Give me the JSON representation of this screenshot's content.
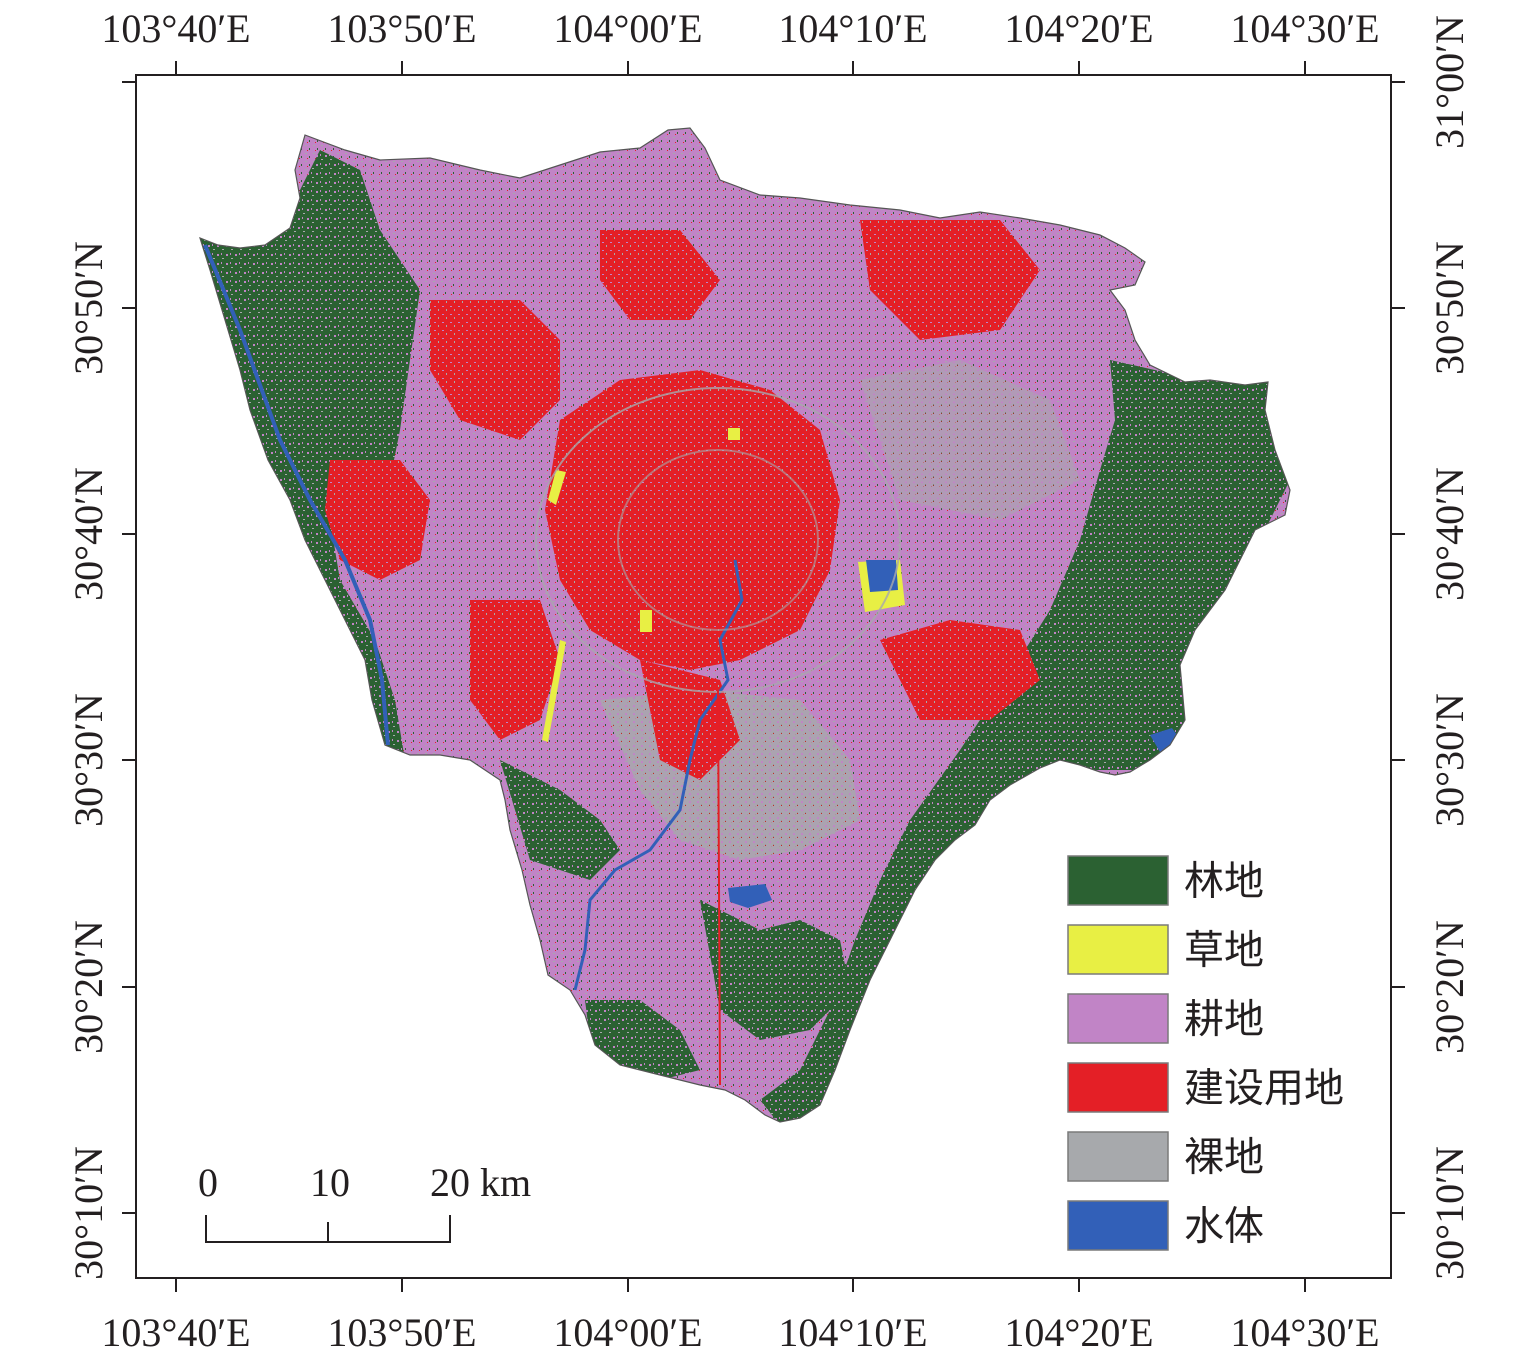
{
  "map": {
    "lon_ticks": [
      "103°40′E",
      "103°50′E",
      "104°00′E",
      "104°10′E",
      "104°20′E",
      "104°30′E"
    ],
    "lat_ticks": [
      "30°10′N",
      "30°20′N",
      "30°30′N",
      "30°40′N",
      "30°50′N",
      "31°00′N"
    ],
    "legend": [
      {
        "label": "林地",
        "color": "#2b6132"
      },
      {
        "label": "草地",
        "color": "#e8ef44"
      },
      {
        "label": "耕地",
        "color": "#c184c6"
      },
      {
        "label": "建设用地",
        "color": "#e41f26"
      },
      {
        "label": "裸地",
        "color": "#a7a9ac"
      },
      {
        "label": "水体",
        "color": "#3260b8"
      }
    ],
    "scale_bar": {
      "labels": [
        "0",
        "10",
        "20 km"
      ]
    }
  }
}
